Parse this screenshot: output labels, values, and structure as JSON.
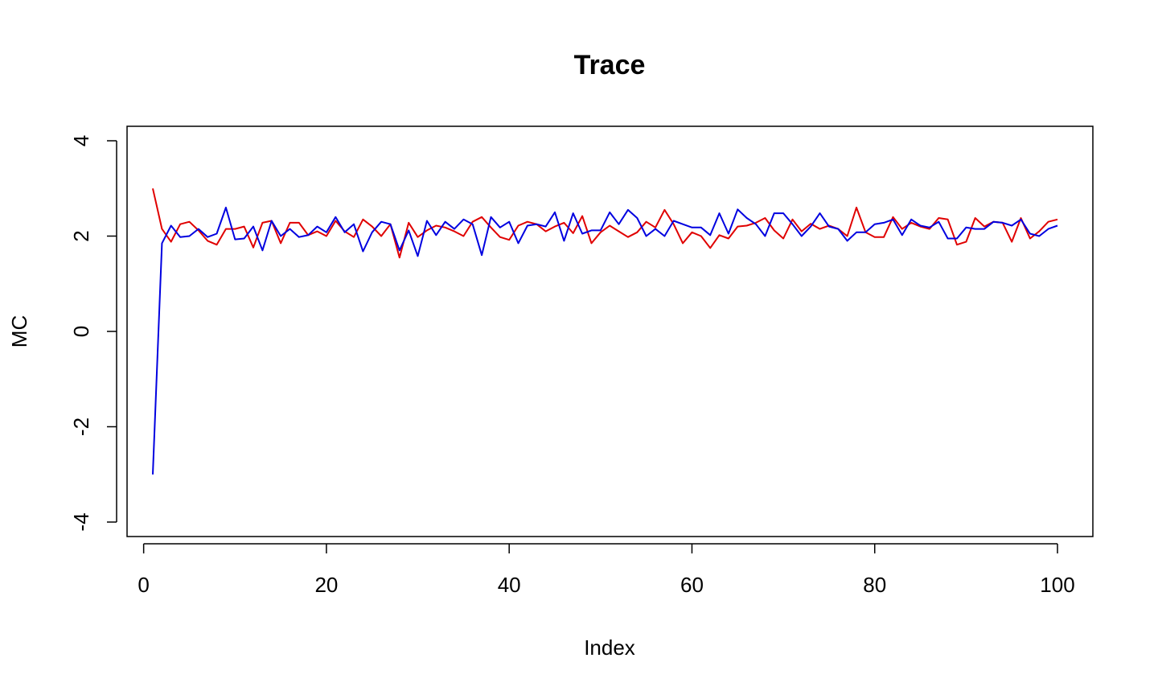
{
  "chart_data": {
    "type": "line",
    "title": "Trace",
    "xlabel": "Index",
    "ylabel": "MC",
    "xlim": [
      1,
      100
    ],
    "ylim": [
      -4,
      4
    ],
    "x_ticks": [
      0,
      20,
      40,
      60,
      80,
      100
    ],
    "y_ticks": [
      -4,
      -2,
      0,
      2,
      4
    ],
    "grid": false,
    "legend": "none",
    "x": [
      1,
      2,
      3,
      4,
      5,
      6,
      7,
      8,
      9,
      10,
      11,
      12,
      13,
      14,
      15,
      16,
      17,
      18,
      19,
      20,
      21,
      22,
      23,
      24,
      25,
      26,
      27,
      28,
      29,
      30,
      31,
      32,
      33,
      34,
      35,
      36,
      37,
      38,
      39,
      40,
      41,
      42,
      43,
      44,
      45,
      46,
      47,
      48,
      49,
      50,
      51,
      52,
      53,
      54,
      55,
      56,
      57,
      58,
      59,
      60,
      61,
      62,
      63,
      64,
      65,
      66,
      67,
      68,
      69,
      70,
      71,
      72,
      73,
      74,
      75,
      76,
      77,
      78,
      79,
      80,
      81,
      82,
      83,
      84,
      85,
      86,
      87,
      88,
      89,
      90,
      91,
      92,
      93,
      94,
      95,
      96,
      97,
      98,
      99,
      100
    ],
    "series": [
      {
        "color": "#e00000",
        "values": [
          3.0,
          2.15,
          1.88,
          2.25,
          2.3,
          2.12,
          1.9,
          1.82,
          2.15,
          2.15,
          2.2,
          1.76,
          2.28,
          2.32,
          1.85,
          2.28,
          2.28,
          2.02,
          2.1,
          2.0,
          2.32,
          2.1,
          1.98,
          2.35,
          2.2,
          2.0,
          2.25,
          1.55,
          2.28,
          1.98,
          2.12,
          2.22,
          2.18,
          2.1,
          2.0,
          2.3,
          2.4,
          2.18,
          1.98,
          1.92,
          2.22,
          2.3,
          2.25,
          2.1,
          2.2,
          2.28,
          2.06,
          2.42,
          1.85,
          2.08,
          2.22,
          2.1,
          1.98,
          2.08,
          2.3,
          2.18,
          2.55,
          2.25,
          1.85,
          2.08,
          2.0,
          1.75,
          2.02,
          1.95,
          2.2,
          2.22,
          2.28,
          2.38,
          2.12,
          1.95,
          2.35,
          2.1,
          2.26,
          2.15,
          2.22,
          2.15,
          2.0,
          2.6,
          2.08,
          1.98,
          1.98,
          2.4,
          2.15,
          2.28,
          2.2,
          2.15,
          2.38,
          2.35,
          1.82,
          1.88,
          2.38,
          2.2,
          2.3,
          2.28,
          1.88,
          2.38,
          1.95,
          2.1,
          2.3,
          2.35
        ]
      },
      {
        "color": "#0000e0",
        "values": [
          -3.0,
          1.85,
          2.22,
          1.98,
          2.0,
          2.15,
          1.98,
          2.05,
          2.6,
          1.93,
          1.95,
          2.2,
          1.7,
          2.32,
          2.0,
          2.15,
          1.98,
          2.02,
          2.2,
          2.08,
          2.4,
          2.08,
          2.25,
          1.68,
          2.08,
          2.3,
          2.25,
          1.7,
          2.12,
          1.58,
          2.32,
          2.02,
          2.3,
          2.15,
          2.35,
          2.25,
          1.6,
          2.4,
          2.18,
          2.3,
          1.85,
          2.22,
          2.25,
          2.2,
          2.5,
          1.9,
          2.48,
          2.05,
          2.12,
          2.12,
          2.5,
          2.25,
          2.55,
          2.38,
          2.0,
          2.15,
          2.0,
          2.32,
          2.25,
          2.18,
          2.18,
          2.02,
          2.48,
          2.05,
          2.56,
          2.38,
          2.25,
          2.0,
          2.48,
          2.48,
          2.25,
          2.0,
          2.2,
          2.48,
          2.2,
          2.15,
          1.9,
          2.08,
          2.08,
          2.25,
          2.28,
          2.35,
          2.02,
          2.35,
          2.22,
          2.18,
          2.3,
          1.95,
          1.95,
          2.18,
          2.15,
          2.15,
          2.3,
          2.28,
          2.22,
          2.35,
          2.05,
          2.0,
          2.15,
          2.22
        ]
      }
    ]
  }
}
